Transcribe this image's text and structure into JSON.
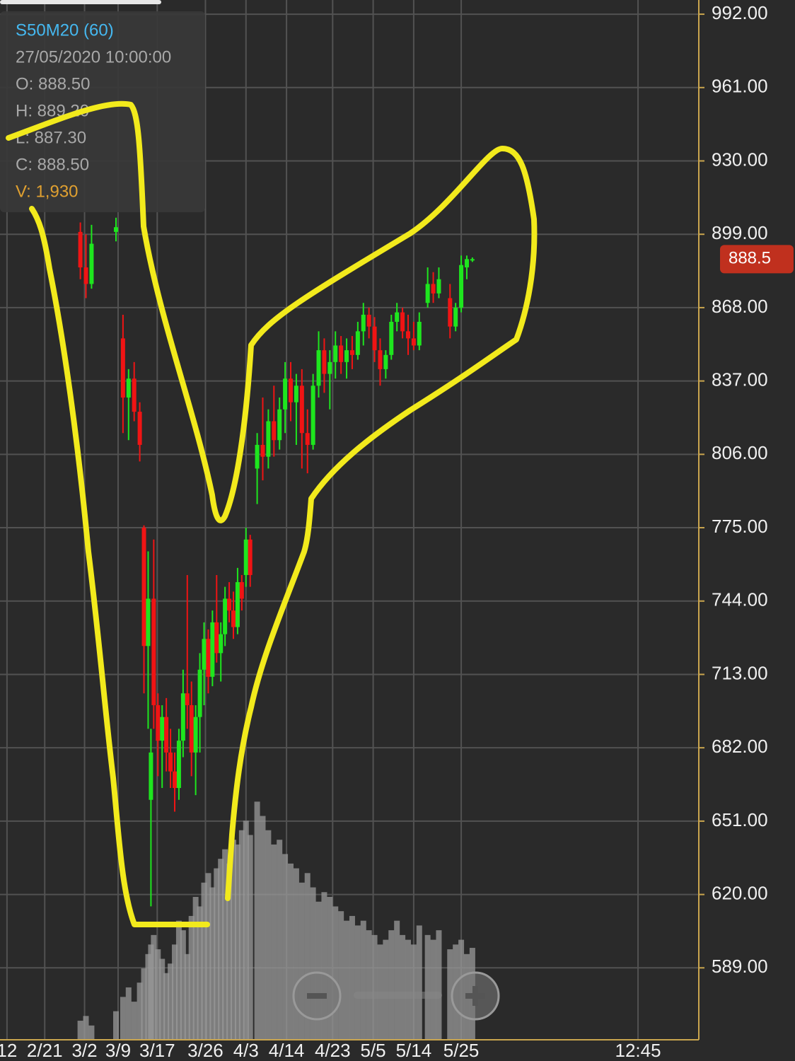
{
  "chart_data": {
    "type": "candlestick",
    "tooltip": {
      "symbol": "S50M20 (60)",
      "datetime": "27/05/2020 10:00:00",
      "open": "O: 888.50",
      "high": "H: 889.20",
      "low": "L: 887.30",
      "close": "C: 888.50",
      "volume": "V: 1,930"
    },
    "last_price": 888.5,
    "up_color": "#1ee61e",
    "down_color": "#f01414",
    "volume_color": "#9a9a9a",
    "xlim": [
      0,
      100
    ],
    "ylim": [
      558.6,
      998
    ],
    "volume_lim": [
      0,
      6000
    ],
    "grid": true,
    "xticks": [
      {
        "value": 1,
        "label": "12"
      },
      {
        "value": 6.4,
        "label": "2/21"
      },
      {
        "value": 12.1,
        "label": "3/2"
      },
      {
        "value": 16.9,
        "label": "3/9"
      },
      {
        "value": 22.5,
        "label": "3/17"
      },
      {
        "value": 29.4,
        "label": "3/26"
      },
      {
        "value": 35.2,
        "label": "4/3"
      },
      {
        "value": 41,
        "label": "4/14"
      },
      {
        "value": 47.6,
        "label": "4/23"
      },
      {
        "value": 53.4,
        "label": "5/5"
      },
      {
        "value": 59.2,
        "label": "5/14"
      },
      {
        "value": 66,
        "label": "5/25"
      },
      {
        "value": 91.3,
        "label": "12:45"
      }
    ],
    "yticks": [
      {
        "value": 992,
        "label": "992.00"
      },
      {
        "value": 961,
        "label": "961.00"
      },
      {
        "value": 930,
        "label": "930.00"
      },
      {
        "value": 899,
        "label": "899.00"
      },
      {
        "value": 868,
        "label": "868.00"
      },
      {
        "value": 837,
        "label": "837.00"
      },
      {
        "value": 806,
        "label": "806.00"
      },
      {
        "value": 775,
        "label": "775.00"
      },
      {
        "value": 744,
        "label": "744.00"
      },
      {
        "value": 713,
        "label": "713.00"
      },
      {
        "value": 682,
        "label": "682.00"
      },
      {
        "value": 651,
        "label": "651.00"
      },
      {
        "value": 620,
        "label": "620.00"
      },
      {
        "value": 589,
        "label": "589.00"
      }
    ],
    "x": [
      11.5,
      12.3,
      13.1,
      16.6,
      17.6,
      18.4,
      19.2,
      20,
      20.6,
      21.2,
      21.6,
      22,
      22.6,
      23.2,
      23.8,
      24.4,
      25,
      25.6,
      26.2,
      26.8,
      27.4,
      28,
      28.6,
      29.2,
      29.8,
      30.4,
      31,
      31.6,
      32.2,
      32.8,
      33.4,
      34,
      34.6,
      35.2,
      35.8,
      36.8,
      37.6,
      38.4,
      39.2,
      40,
      40.8,
      41.6,
      42.4,
      43.2,
      44,
      44.8,
      45.6,
      46.4,
      47.2,
      48,
      48.8,
      49.6,
      50.4,
      51.2,
      52,
      52.8,
      53.6,
      54.4,
      55.2,
      56,
      56.8,
      57.6,
      58.4,
      59.2,
      60,
      61.2,
      62,
      62.8,
      64.4,
      65.2,
      66,
      66.8,
      67.6
    ],
    "open": [
      900,
      885,
      878,
      900,
      855,
      830,
      838,
      824,
      775,
      725,
      660,
      745,
      700,
      685,
      695,
      680,
      672,
      665,
      685,
      705,
      700,
      680,
      695,
      715,
      728,
      712,
      735,
      722,
      730,
      745,
      740,
      733,
      752,
      755,
      770,
      800,
      810,
      805,
      820,
      812,
      825,
      838,
      828,
      835,
      815,
      810,
      835,
      850,
      840,
      845,
      852,
      845,
      850,
      848,
      858,
      865,
      860,
      850,
      842,
      848,
      862,
      866,
      858,
      855,
      852,
      870,
      878,
      874,
      872,
      860,
      868,
      885,
      888.5
    ],
    "high": [
      904,
      899,
      903,
      906,
      865,
      842,
      845,
      828,
      776,
      765,
      690,
      770,
      705,
      700,
      703,
      690,
      680,
      690,
      715,
      755,
      710,
      700,
      722,
      735,
      732,
      740,
      755,
      735,
      750,
      752,
      748,
      758,
      755,
      775,
      772,
      815,
      830,
      825,
      835,
      830,
      845,
      845,
      840,
      842,
      825,
      840,
      858,
      855,
      850,
      858,
      856,
      855,
      856,
      862,
      870,
      868,
      864,
      855,
      850,
      865,
      870,
      868,
      865,
      862,
      866,
      885,
      883,
      885,
      878,
      870,
      890,
      890,
      889.2
    ],
    "low": [
      880,
      872,
      876,
      896,
      815,
      812,
      820,
      803,
      705,
      690,
      615,
      690,
      670,
      665,
      672,
      665,
      655,
      660,
      678,
      690,
      670,
      662,
      680,
      700,
      705,
      708,
      718,
      710,
      725,
      735,
      728,
      730,
      740,
      750,
      750,
      785,
      795,
      800,
      805,
      808,
      815,
      820,
      810,
      800,
      798,
      808,
      830,
      832,
      825,
      838,
      840,
      838,
      842,
      846,
      852,
      855,
      845,
      835,
      838,
      846,
      858,
      855,
      848,
      850,
      850,
      868,
      870,
      872,
      855,
      858,
      866,
      880,
      887.3
    ],
    "close": [
      885,
      878,
      895,
      902,
      830,
      838,
      824,
      810,
      725,
      745,
      680,
      700,
      685,
      695,
      680,
      672,
      665,
      685,
      705,
      700,
      680,
      695,
      715,
      728,
      712,
      735,
      722,
      730,
      745,
      740,
      733,
      752,
      745,
      770,
      755,
      810,
      805,
      820,
      812,
      825,
      838,
      828,
      835,
      815,
      810,
      835,
      850,
      840,
      845,
      852,
      845,
      850,
      848,
      858,
      865,
      860,
      850,
      842,
      848,
      862,
      866,
      858,
      855,
      852,
      862,
      878,
      874,
      880,
      860,
      868,
      886,
      888.5,
      888.5
    ],
    "volume": [
      400,
      500,
      300,
      600,
      900,
      1100,
      800,
      1200,
      1500,
      1800,
      2000,
      2200,
      1900,
      1700,
      1400,
      1600,
      2000,
      2500,
      2300,
      1800,
      2600,
      3000,
      2800,
      3300,
      3500,
      3200,
      3600,
      3800,
      4000,
      3700,
      4200,
      4100,
      4400,
      4600,
      4300,
      5000,
      4700,
      4400,
      4100,
      4200,
      3900,
      3700,
      3600,
      3300,
      3500,
      3200,
      2900,
      3100,
      3000,
      2800,
      2700,
      2500,
      2600,
      2400,
      2500,
      2300,
      2200,
      2000,
      2100,
      2300,
      2500,
      2200,
      2100,
      2000,
      2400,
      2200,
      2100,
      2300,
      1900,
      2000,
      2100,
      1800,
      1930
    ]
  }
}
